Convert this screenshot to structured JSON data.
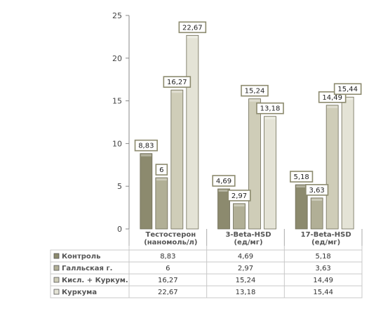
{
  "chart_data": {
    "type": "bar",
    "categories": [
      "Тестостерон\n(наномоль/л)",
      "3-Beta-HSD\n(ед/мг)",
      "17-Beta-HSD\n(ед/мг)"
    ],
    "series": [
      {
        "name": "Контроль",
        "values": [
          8.83,
          4.69,
          5.18
        ],
        "labels": [
          "8,83",
          "4,69",
          "5,18"
        ],
        "color": "#8c8a6e"
      },
      {
        "name": "Галльская г.",
        "values": [
          6,
          2.97,
          3.63
        ],
        "labels": [
          "6",
          "2,97",
          "3,63"
        ],
        "color": "#b1af96"
      },
      {
        "name": "Кисл. + Куркум.",
        "values": [
          16.27,
          15.24,
          14.49
        ],
        "labels": [
          "16,27",
          "15,24",
          "14,49"
        ],
        "color": "#cfcdb8"
      },
      {
        "name": "Куркума",
        "values": [
          22.67,
          13.18,
          15.44
        ],
        "labels": [
          "22,67",
          "13,18",
          "15,44"
        ],
        "color": "#e4e3d6"
      }
    ],
    "yticks": [
      "0",
      "5",
      "10",
      "15",
      "20",
      "25"
    ],
    "ylim": [
      0,
      25
    ],
    "grid": false,
    "legend": "table-below",
    "title": "",
    "xlabel": "",
    "ylabel": ""
  }
}
